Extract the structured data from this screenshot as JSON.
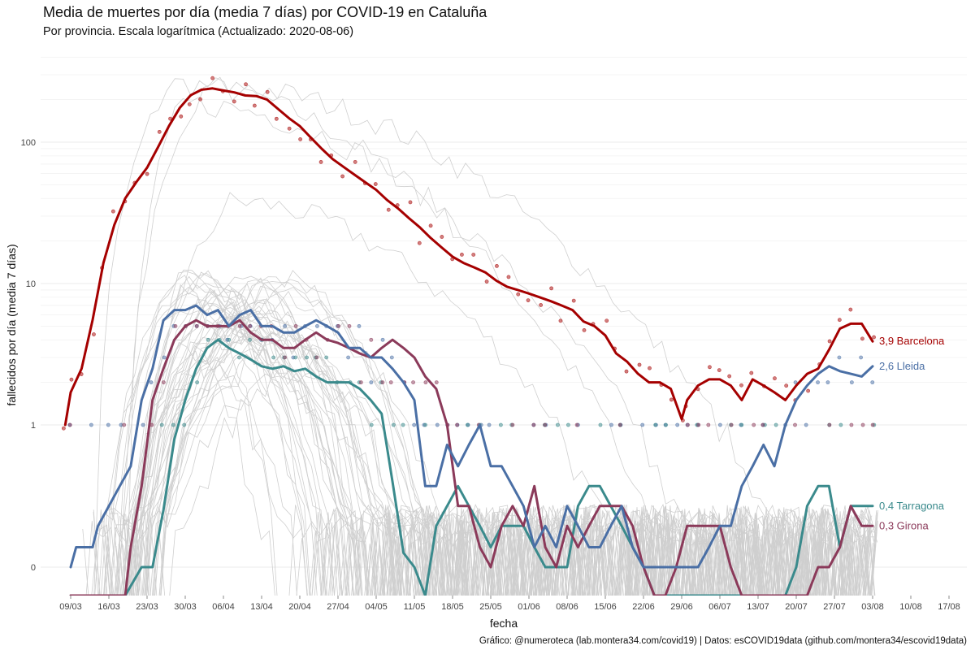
{
  "header": {
    "title": "Media de muertes por día (media 7 días) por COVID-19 en Cataluña",
    "subtitle": "Por provincia. Escala logarítmica  (Actualizado: 2020-08-06)"
  },
  "caption": "Gráfico: @numeroteca (lab.montera34.com/covid19) | Datos: esCOVID19data (github.com/montera34/escovid19data)",
  "colors": {
    "barcelona": "#a50000",
    "lleida": "#4a6fa5",
    "tarragona": "#3a8a8c",
    "girona": "#8b3a5a",
    "background_lines": "#cfcfcf",
    "grid": "#ebebeb"
  },
  "chart_data": {
    "type": "line",
    "xlabel": "fecha",
    "ylabel": "fallecidos por día (media 7 días)",
    "y_scale": "log",
    "y_ticks": [
      {
        "value": 0,
        "label": "0"
      },
      {
        "value": 1,
        "label": "1"
      },
      {
        "value": 10,
        "label": "10"
      },
      {
        "value": 100,
        "label": "100"
      }
    ],
    "x_ticks": [
      "09/03",
      "16/03",
      "23/03",
      "30/03",
      "06/04",
      "13/04",
      "20/04",
      "27/04",
      "04/05",
      "11/05",
      "18/05",
      "25/05",
      "01/06",
      "08/06",
      "15/06",
      "22/06",
      "29/06",
      "06/07",
      "13/07",
      "20/07",
      "27/07",
      "03/08",
      "10/08",
      "17/08"
    ],
    "grid": true,
    "legend": "end-labels",
    "series": [
      {
        "name": "Barcelona",
        "key": "barcelona",
        "end_label": "3,9 Barcelona",
        "x": [
          "03-08",
          "03-09",
          "03-11",
          "03-13",
          "03-15",
          "03-17",
          "03-19",
          "03-21",
          "03-23",
          "03-25",
          "03-27",
          "03-29",
          "03-31",
          "04-02",
          "04-04",
          "04-06",
          "04-08",
          "04-10",
          "04-12",
          "04-14",
          "04-16",
          "04-18",
          "04-20",
          "04-22",
          "04-24",
          "04-26",
          "04-28",
          "04-30",
          "05-02",
          "05-04",
          "05-06",
          "05-08",
          "05-10",
          "05-12",
          "05-14",
          "05-16",
          "05-18",
          "05-20",
          "05-22",
          "05-24",
          "05-26",
          "05-28",
          "05-30",
          "06-01",
          "06-03",
          "06-05",
          "06-07",
          "06-09",
          "06-11",
          "06-13",
          "06-15",
          "06-17",
          "06-19",
          "06-21",
          "06-23",
          "06-25",
          "06-27",
          "06-29",
          "06-30",
          "07-02",
          "07-04",
          "07-06",
          "07-08",
          "07-10",
          "07-12",
          "07-14",
          "07-16",
          "07-18",
          "07-20",
          "07-22",
          "07-24",
          "07-26",
          "07-28",
          "07-30",
          "08-01",
          "08-03"
        ],
        "values": [
          1.0,
          1.7,
          2.5,
          5.5,
          14,
          26,
          40,
          52,
          66,
          92,
          130,
          175,
          215,
          235,
          240,
          232,
          225,
          214,
          212,
          200,
          172,
          148,
          130,
          108,
          90,
          76,
          67,
          59,
          52,
          46,
          39,
          34,
          29,
          25,
          21,
          18,
          15.5,
          14,
          13,
          12,
          10.5,
          9.5,
          9,
          8.5,
          8,
          7.5,
          7,
          6.5,
          5.4,
          5.0,
          4.3,
          3.2,
          2.8,
          2.3,
          2.0,
          2.0,
          1.8,
          1.1,
          1.5,
          1.9,
          2.1,
          2.1,
          1.9,
          1.5,
          2.1,
          1.9,
          1.7,
          1.5,
          1.9,
          2.3,
          2.5,
          3.4,
          4.8,
          5.2,
          5.2,
          3.9
        ]
      },
      {
        "name": "Lleida",
        "key": "lleida",
        "end_label": "2,6 Lleida",
        "x": [
          "03-09",
          "03-10",
          "03-13",
          "03-14",
          "03-16",
          "03-18",
          "03-20",
          "03-22",
          "03-24",
          "03-26",
          "03-28",
          "03-30",
          "04-01",
          "04-03",
          "04-05",
          "04-07",
          "04-09",
          "04-11",
          "04-13",
          "04-15",
          "04-17",
          "04-19",
          "04-21",
          "04-23",
          "04-25",
          "04-27",
          "04-29",
          "05-01",
          "05-03",
          "05-05",
          "05-07",
          "05-09",
          "05-11",
          "05-13",
          "05-15",
          "05-17",
          "05-19",
          "05-21",
          "05-23",
          "05-25",
          "05-27",
          "05-29",
          "05-31",
          "06-02",
          "06-04",
          "06-06",
          "06-08",
          "06-10",
          "06-12",
          "06-14",
          "06-16",
          "06-18",
          "06-20",
          "06-22",
          "06-24",
          "06-26",
          "06-28",
          "06-30",
          "07-02",
          "07-04",
          "07-06",
          "07-08",
          "07-10",
          "07-12",
          "07-14",
          "07-16",
          "07-18",
          "07-20",
          "07-22",
          "07-24",
          "07-26",
          "07-28",
          "07-30",
          "08-01",
          "08-03"
        ],
        "values": [
          0,
          0.14,
          0.14,
          0.29,
          0.43,
          0.57,
          0.71,
          1.5,
          2.5,
          5.5,
          6.5,
          6.5,
          7.0,
          6.0,
          6.5,
          5.0,
          6.0,
          6.5,
          5.0,
          5.0,
          4.5,
          4.5,
          5.0,
          5.5,
          5.0,
          4.5,
          3.5,
          3.5,
          3.0,
          3.0,
          2.5,
          2.0,
          1.5,
          0.57,
          0.57,
          0.86,
          0.71,
          0.86,
          1.0,
          0.71,
          0.71,
          0.57,
          0.43,
          0.14,
          0.29,
          0.14,
          0.43,
          0.29,
          0.14,
          0.14,
          0.29,
          0.43,
          0.14,
          0.0,
          0.0,
          0.0,
          0.0,
          0.0,
          0.0,
          0.14,
          0.29,
          0.29,
          0.57,
          0.71,
          0.86,
          0.71,
          1.0,
          1.5,
          1.9,
          2.3,
          2.6,
          2.4,
          2.3,
          2.2,
          2.6
        ]
      },
      {
        "name": "Tarragona",
        "key": "tarragona",
        "end_label": "0,4 Tarragona",
        "x": [
          "03-09",
          "03-19",
          "03-22",
          "03-24",
          "03-26",
          "03-28",
          "03-30",
          "04-01",
          "04-03",
          "04-05",
          "04-07",
          "04-09",
          "04-11",
          "04-13",
          "04-15",
          "04-17",
          "04-19",
          "04-21",
          "04-23",
          "04-25",
          "04-27",
          "04-29",
          "05-01",
          "05-03",
          "05-05",
          "05-07",
          "05-09",
          "05-11",
          "05-13",
          "05-15",
          "05-17",
          "05-19",
          "05-21",
          "05-23",
          "05-25",
          "05-27",
          "05-29",
          "05-31",
          "06-02",
          "06-04",
          "06-06",
          "06-08",
          "06-10",
          "06-12",
          "06-14",
          "06-16",
          "06-18",
          "06-20",
          "06-22",
          "06-24",
          "06-26",
          "06-28",
          "06-30",
          "07-02",
          "07-04",
          "07-06",
          "07-08",
          "07-10",
          "07-12",
          "07-14",
          "07-16",
          "07-18",
          "07-20",
          "07-22",
          "07-24",
          "07-26",
          "07-28",
          "07-30",
          "08-01",
          "08-03"
        ],
        "values": [
          -0.1,
          -0.1,
          0.0,
          0.0,
          0.4,
          0.9,
          1.5,
          2.5,
          3.5,
          4.0,
          3.5,
          3.2,
          2.9,
          2.6,
          2.5,
          2.6,
          2.4,
          2.5,
          2.2,
          2.0,
          2.0,
          2.0,
          1.8,
          1.5,
          1.2,
          0.6,
          0.1,
          0.0,
          -0.1,
          0.29,
          0.43,
          0.57,
          0.43,
          0.29,
          0.14,
          0.29,
          0.29,
          0.29,
          0.14,
          0.0,
          0.0,
          0.0,
          0.43,
          0.57,
          0.57,
          0.43,
          0.29,
          0.14,
          0.0,
          -0.1,
          -0.1,
          -0.1,
          -0.1,
          -0.1,
          -0.1,
          -0.1,
          -0.1,
          -0.1,
          -0.1,
          -0.1,
          -0.1,
          -0.1,
          0.0,
          0.43,
          0.57,
          0.57,
          0.14,
          0.43,
          0.43,
          0.43
        ]
      },
      {
        "name": "Girona",
        "key": "girona",
        "end_label": "0,3 Girona",
        "x": [
          "03-09",
          "03-19",
          "03-20",
          "03-22",
          "03-24",
          "03-26",
          "03-28",
          "03-30",
          "04-01",
          "04-03",
          "04-05",
          "04-07",
          "04-09",
          "04-11",
          "04-13",
          "04-15",
          "04-17",
          "04-19",
          "04-21",
          "04-23",
          "04-25",
          "04-27",
          "04-29",
          "05-01",
          "05-03",
          "05-05",
          "05-07",
          "05-09",
          "05-11",
          "05-13",
          "05-15",
          "05-17",
          "05-19",
          "05-21",
          "05-23",
          "05-25",
          "05-27",
          "05-29",
          "05-31",
          "06-02",
          "06-04",
          "06-06",
          "06-08",
          "06-10",
          "06-12",
          "06-14",
          "06-16",
          "06-18",
          "06-20",
          "06-22",
          "06-24",
          "06-26",
          "06-28",
          "06-30",
          "07-02",
          "07-04",
          "07-06",
          "07-08",
          "07-10",
          "07-12",
          "07-14",
          "07-16",
          "07-18",
          "07-20",
          "07-22",
          "07-24",
          "07-26",
          "07-28",
          "07-30",
          "08-01",
          "08-03"
        ],
        "values": [
          -0.1,
          -0.1,
          0.14,
          0.57,
          1.5,
          2.5,
          4.0,
          5.0,
          5.5,
          5.0,
          5.0,
          5.0,
          5.5,
          4.5,
          4.0,
          4.0,
          3.5,
          3.5,
          4.0,
          4.5,
          4.0,
          3.8,
          3.5,
          3.2,
          3.0,
          3.5,
          4.0,
          3.5,
          3.0,
          2.2,
          1.8,
          1.0,
          0.43,
          0.43,
          0.14,
          0.0,
          0.29,
          0.43,
          0.29,
          0.57,
          0.14,
          0.0,
          0.29,
          0.14,
          0.29,
          0.43,
          0.43,
          0.43,
          0.29,
          0.0,
          -0.1,
          -0.1,
          0.0,
          0.29,
          0.29,
          0.29,
          0.29,
          0.0,
          -0.1,
          -0.1,
          -0.1,
          -0.1,
          -0.1,
          -0.1,
          -0.1,
          0.0,
          0.0,
          0.14,
          0.43,
          0.29,
          0.29
        ]
      }
    ]
  }
}
